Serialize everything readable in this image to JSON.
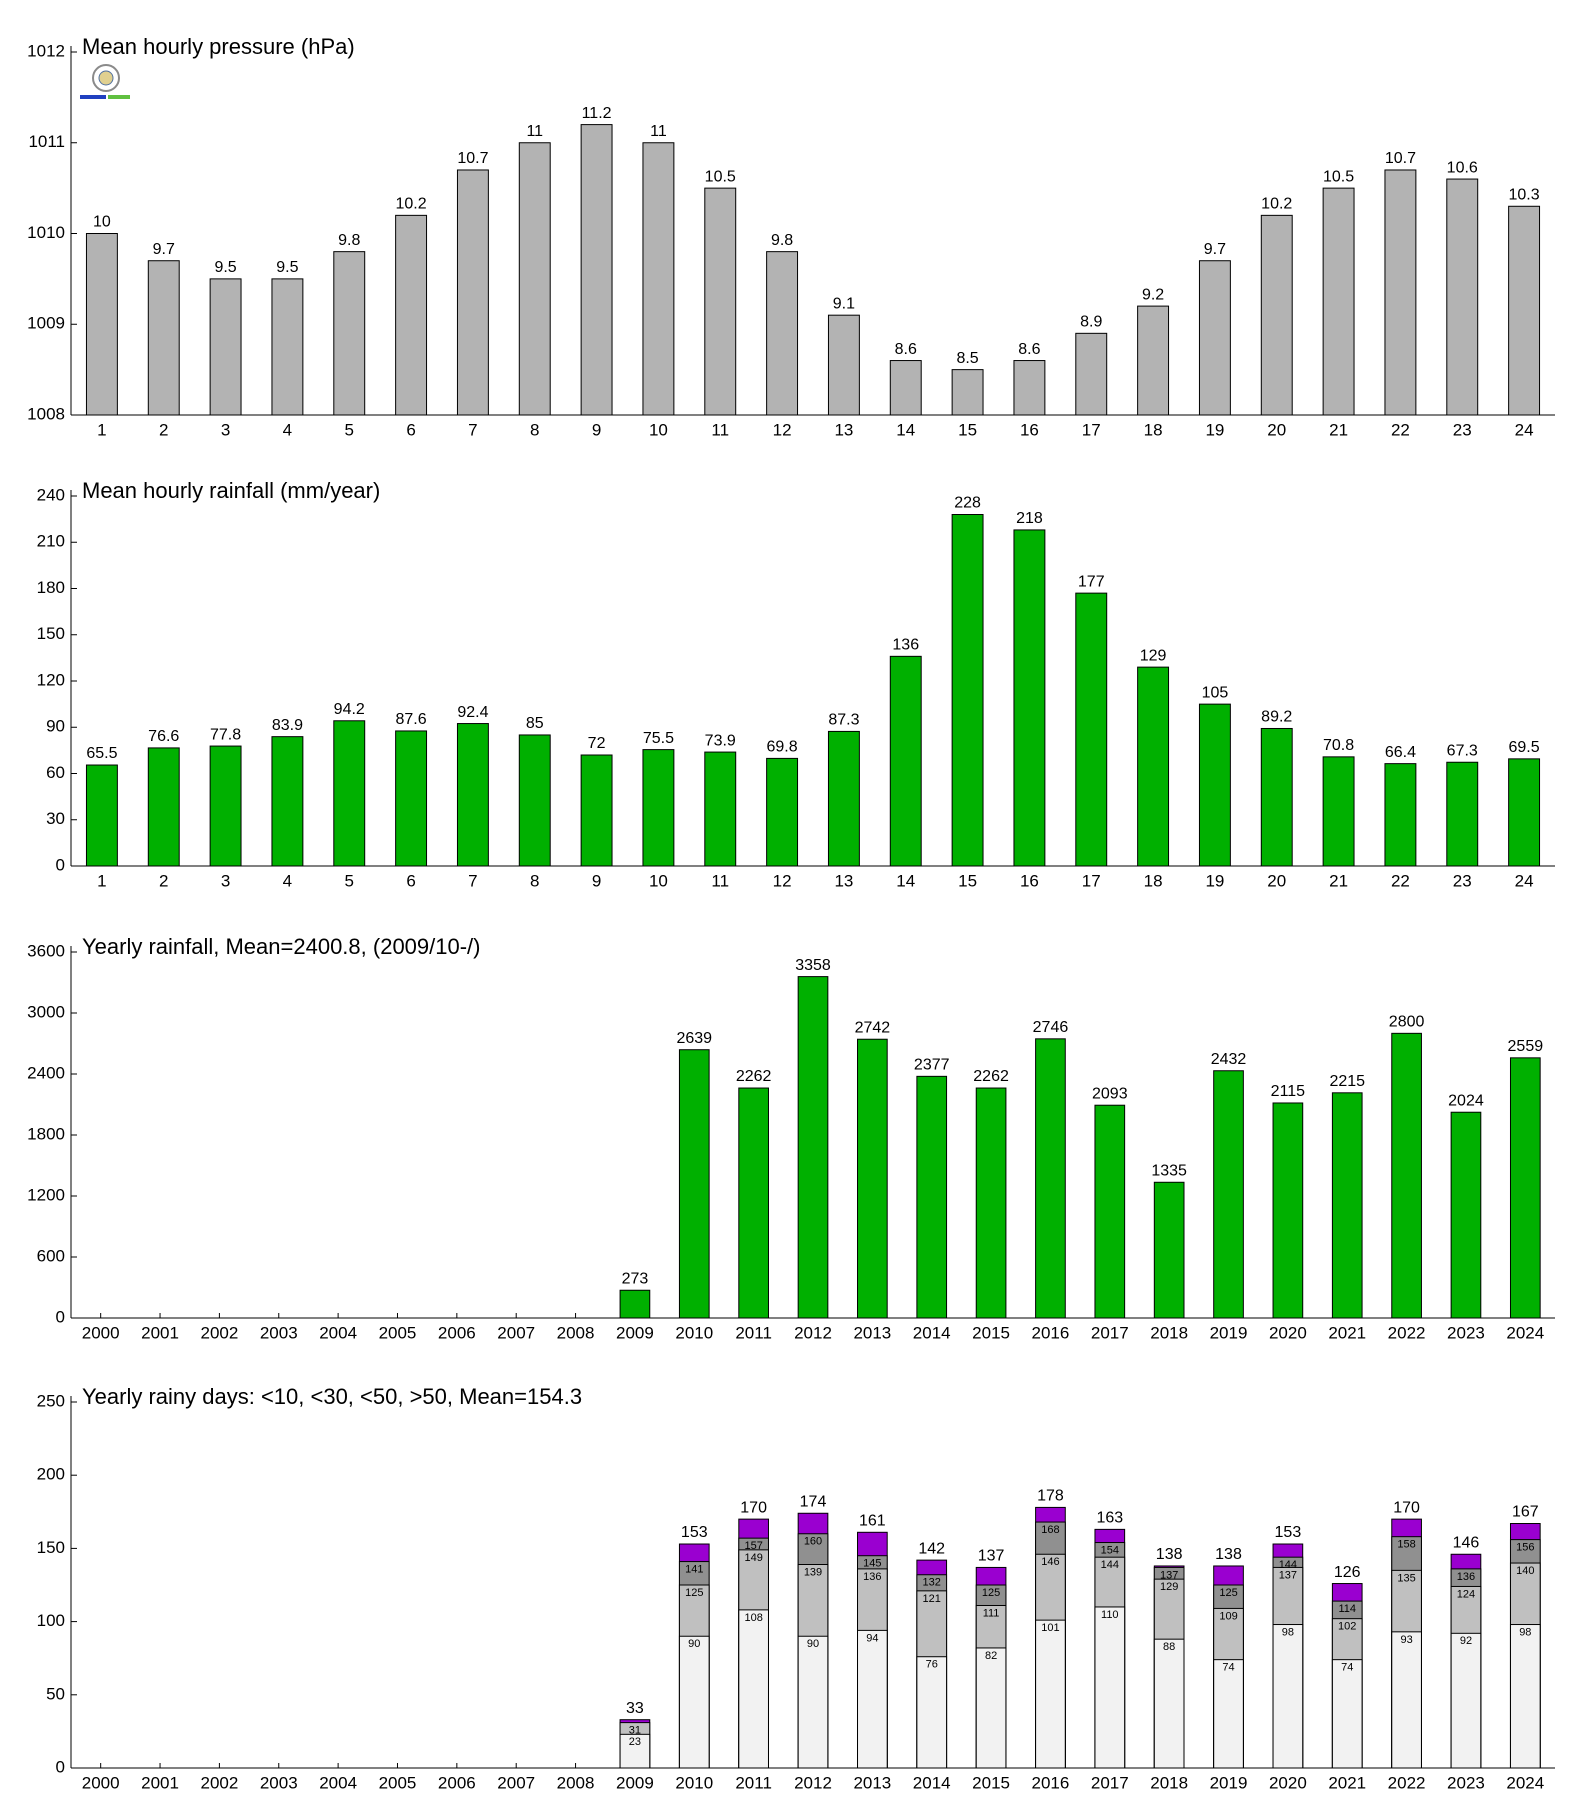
{
  "chart_data": [
    {
      "type": "bar",
      "title": "Mean hourly pressure (hPa)",
      "categories": [
        "1",
        "2",
        "3",
        "4",
        "5",
        "6",
        "7",
        "8",
        "9",
        "10",
        "11",
        "12",
        "13",
        "14",
        "15",
        "16",
        "17",
        "18",
        "19",
        "20",
        "21",
        "22",
        "23",
        "24"
      ],
      "values": [
        1010.0,
        1009.7,
        1009.5,
        1009.5,
        1009.8,
        1010.2,
        1010.7,
        1011.0,
        1011.2,
        1011.0,
        1010.5,
        1009.8,
        1009.1,
        1008.6,
        1008.5,
        1008.6,
        1008.9,
        1009.2,
        1009.7,
        1010.2,
        1010.5,
        1010.7,
        1010.6,
        1010.3
      ],
      "value_labels": [
        "10",
        "9.7",
        "9.5",
        "9.5",
        "9.8",
        "10.2",
        "10.7",
        "11",
        "11.2",
        "11",
        "10.5",
        "9.8",
        "9.1",
        "8.6",
        "8.5",
        "8.6",
        "8.9",
        "9.2",
        "9.7",
        "10.2",
        "10.5",
        "10.7",
        "10.6",
        "10.3"
      ],
      "color": "#b3b3b3",
      "ylim": [
        1008,
        1012
      ],
      "yticks": [
        1008,
        1009,
        1010,
        1011,
        1012
      ]
    },
    {
      "type": "bar",
      "title": "Mean hourly rainfall (mm/year)",
      "categories": [
        "1",
        "2",
        "3",
        "4",
        "5",
        "6",
        "7",
        "8",
        "9",
        "10",
        "11",
        "12",
        "13",
        "14",
        "15",
        "16",
        "17",
        "18",
        "19",
        "20",
        "21",
        "22",
        "23",
        "24"
      ],
      "values": [
        65.5,
        76.6,
        77.8,
        83.9,
        94.2,
        87.6,
        92.4,
        85,
        72,
        75.5,
        73.9,
        69.8,
        87.3,
        136,
        228,
        218,
        177,
        129,
        105,
        89.2,
        70.8,
        66.4,
        67.3,
        69.5
      ],
      "color": "#00b000",
      "ylim": [
        0,
        240
      ],
      "yticks": [
        0,
        30,
        60,
        90,
        120,
        150,
        180,
        210,
        240
      ]
    },
    {
      "type": "bar",
      "title": "Yearly rainfall, Mean=2400.8, (2009/10-/)",
      "categories": [
        "2000",
        "2001",
        "2002",
        "2003",
        "2004",
        "2005",
        "2006",
        "2007",
        "2008",
        "2009",
        "2010",
        "2011",
        "2012",
        "2013",
        "2014",
        "2015",
        "2016",
        "2017",
        "2018",
        "2019",
        "2020",
        "2021",
        "2022",
        "2023",
        "2024"
      ],
      "values": [
        null,
        null,
        null,
        null,
        null,
        null,
        null,
        null,
        null,
        273,
        2639,
        2262,
        3358,
        2742,
        2377,
        2262,
        2746,
        2093,
        1335,
        2432,
        2115,
        2215,
        2800,
        2024,
        2559
      ],
      "color": "#00b000",
      "ylim": [
        0,
        3600
      ],
      "yticks": [
        0,
        600,
        1200,
        1800,
        2400,
        3000,
        3600
      ]
    },
    {
      "type": "overlap_bar",
      "title": "Yearly rainy days: <10, <30, <50, >50, Mean=154.3",
      "categories": [
        "2000",
        "2001",
        "2002",
        "2003",
        "2004",
        "2005",
        "2006",
        "2007",
        "2008",
        "2009",
        "2010",
        "2011",
        "2012",
        "2013",
        "2014",
        "2015",
        "2016",
        "2017",
        "2018",
        "2019",
        "2020",
        "2021",
        "2022",
        "2023",
        "2024"
      ],
      "series": [
        {
          "color": "#f2f2f2",
          "values": [
            null,
            null,
            null,
            null,
            null,
            null,
            null,
            null,
            null,
            23,
            90,
            108,
            90,
            94,
            76,
            82,
            101,
            110,
            88,
            74,
            98,
            74,
            93,
            92,
            98
          ]
        },
        {
          "color": "#c0c0c0",
          "values": [
            null,
            null,
            null,
            null,
            null,
            null,
            null,
            null,
            null,
            31,
            125,
            149,
            139,
            136,
            121,
            111,
            146,
            144,
            129,
            109,
            137,
            102,
            135,
            124,
            140
          ]
        },
        {
          "color": "#909090",
          "values": [
            null,
            null,
            null,
            null,
            null,
            null,
            null,
            null,
            null,
            null,
            141,
            157,
            160,
            145,
            132,
            125,
            168,
            154,
            137,
            125,
            144,
            114,
            158,
            136,
            156
          ]
        },
        {
          "color": "#9a00d0",
          "values": [
            null,
            null,
            null,
            null,
            null,
            null,
            null,
            null,
            null,
            33,
            153,
            170,
            174,
            161,
            142,
            137,
            178,
            163,
            138,
            138,
            153,
            126,
            170,
            146,
            167
          ]
        }
      ],
      "ylim": [
        0,
        250
      ],
      "yticks": [
        0,
        50,
        100,
        150,
        200,
        250
      ]
    }
  ]
}
